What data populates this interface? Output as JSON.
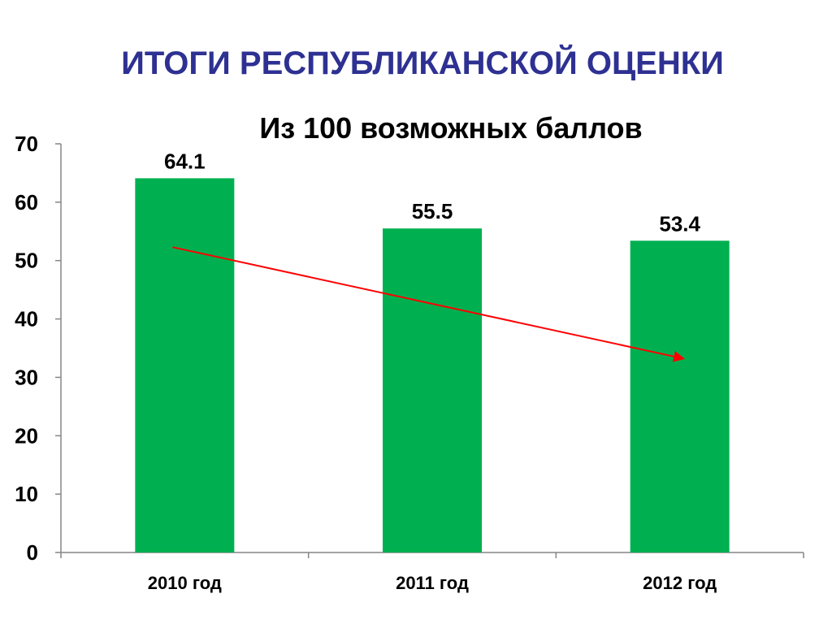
{
  "slide": {
    "title": "ИТОГИ РЕСПУБЛИКАНСКОЙ ОЦЕНКИ"
  },
  "chart_data": {
    "type": "bar",
    "title": "Из 100 возможных баллов",
    "categories": [
      "2010 год",
      "2011 год",
      "2012 год"
    ],
    "values": [
      64.1,
      55.5,
      53.4
    ],
    "data_labels": [
      "64.1",
      "55.5",
      "53.4"
    ],
    "ylim": [
      0,
      70
    ],
    "yticks": [
      0,
      10,
      20,
      30,
      40,
      50,
      60,
      70
    ],
    "xlabel": "",
    "ylabel": "",
    "grid": false,
    "bar_color": "#00b050",
    "trend_arrow": {
      "color": "#ff0000",
      "from": {
        "category": "2010 год",
        "value": 52.3
      },
      "to": {
        "category": "2012 год",
        "value": 33.2
      }
    }
  }
}
